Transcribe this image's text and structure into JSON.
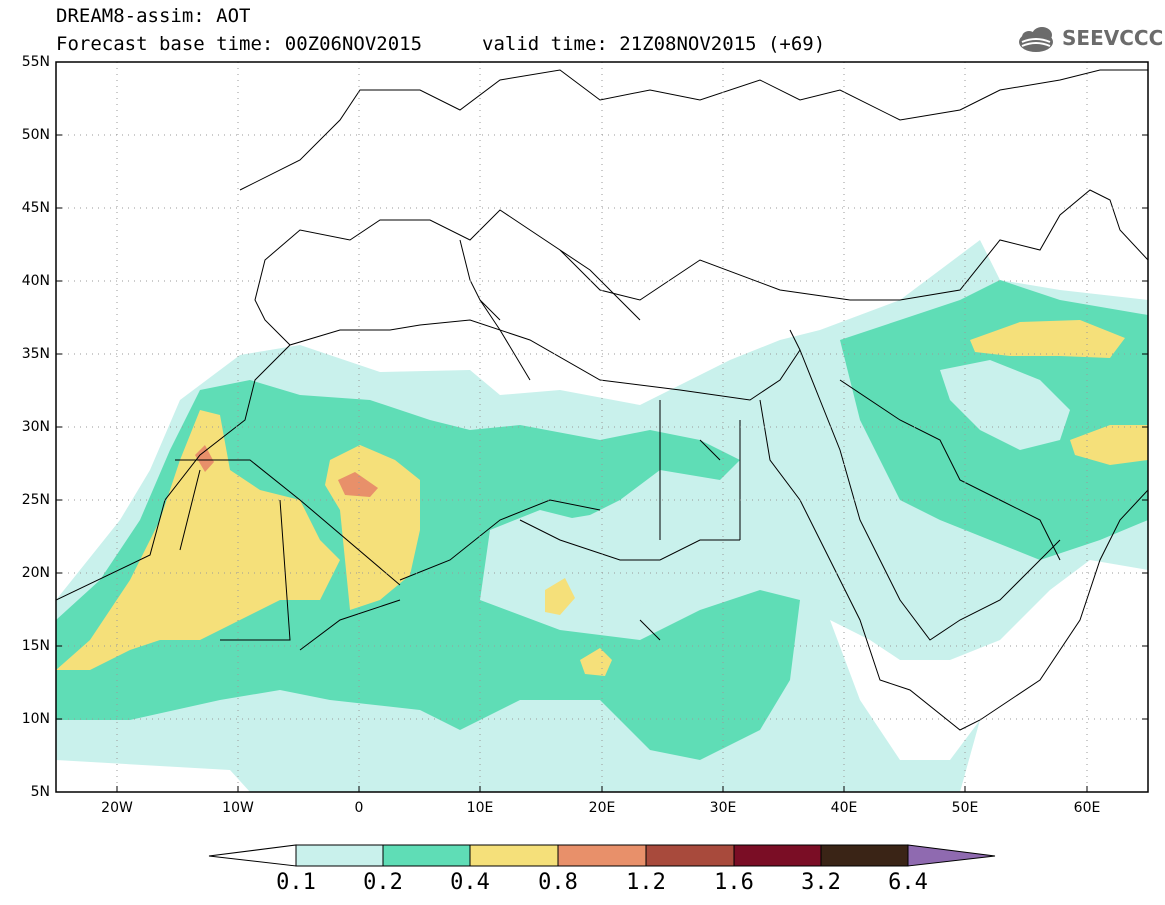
{
  "header": {
    "line1": "DREAM8-assim: AOT",
    "line2": "Forecast base time: 00Z06NOV2015",
    "line3": "valid time: 21Z08NOV2015 (+69)"
  },
  "logo": {
    "text": "SEEVCCC"
  },
  "map": {
    "lat_labels": [
      "55N",
      "50N",
      "45N",
      "40N",
      "35N",
      "30N",
      "25N",
      "20N",
      "15N",
      "10N",
      "5N"
    ],
    "lon_labels": [
      "20W",
      "10W",
      "0",
      "10E",
      "20E",
      "30E",
      "40E",
      "50E",
      "60E"
    ],
    "extent": {
      "lon_min": -25,
      "lon_max": 65,
      "lat_min": 5,
      "lat_max": 55
    }
  },
  "colorbar": {
    "labels": [
      "0.1",
      "0.2",
      "0.4",
      "0.8",
      "1.2",
      "1.6",
      "3.2",
      "6.4"
    ],
    "colors": [
      "#c9f1ec",
      "#5fddb6",
      "#f5e07a",
      "#e8906a",
      "#a84a3c",
      "#7a0d25",
      "#3a2416",
      "#8f6ab0"
    ]
  },
  "chart_data": {
    "type": "heatmap",
    "title": "DREAM8-assim: AOT",
    "levels": [
      0.1,
      0.2,
      0.4,
      0.8,
      1.2,
      1.6,
      3.2,
      6.4
    ],
    "colors": [
      "#c9f1ec",
      "#5fddb6",
      "#f5e07a",
      "#e8906a",
      "#a84a3c",
      "#7a0d25",
      "#3a2416",
      "#8f6ab0"
    ],
    "xlim": [
      -25,
      65
    ],
    "ylim": [
      5,
      55
    ]
  }
}
